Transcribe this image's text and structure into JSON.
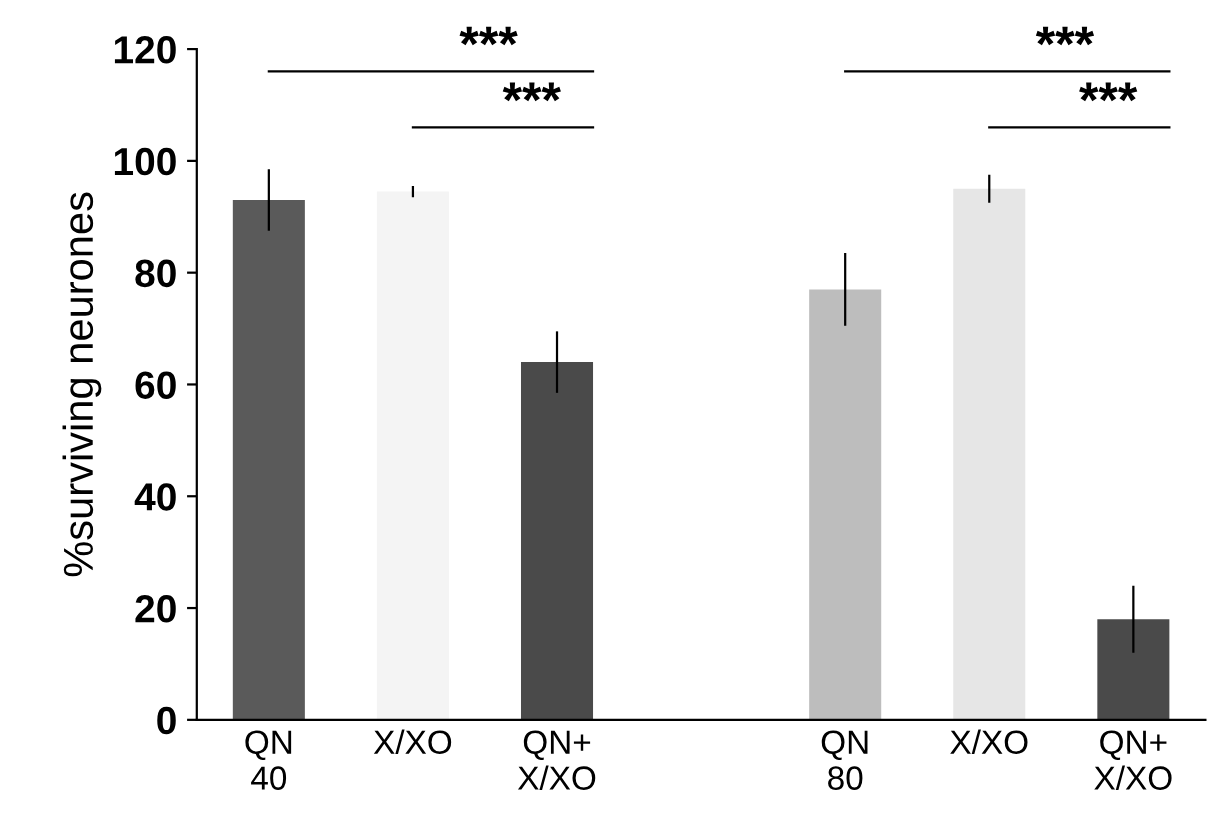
{
  "chart_data": {
    "type": "bar",
    "categories": [
      "QN\n40",
      "X/XO",
      "QN+\nX/XO",
      null,
      "QN\n80",
      "X/XO",
      "QN+\nX/XO"
    ],
    "values": [
      93,
      94.5,
      64,
      null,
      77,
      95,
      18
    ],
    "errors": [
      5.5,
      1,
      5.5,
      null,
      6.5,
      2.5,
      6
    ],
    "colors": [
      "#5a5a5a",
      "#f4f4f4",
      "#4a4a4a",
      null,
      "#bdbdbd",
      "#e6e6e6",
      "#4a4a4a"
    ],
    "ylabel": "%surviving neurones",
    "ylim": [
      0,
      120
    ],
    "yticks": [
      0,
      20,
      40,
      60,
      80,
      100,
      120
    ],
    "annotations": [
      "***",
      "***",
      "***",
      "***"
    ],
    "grid": false,
    "legend": false
  }
}
